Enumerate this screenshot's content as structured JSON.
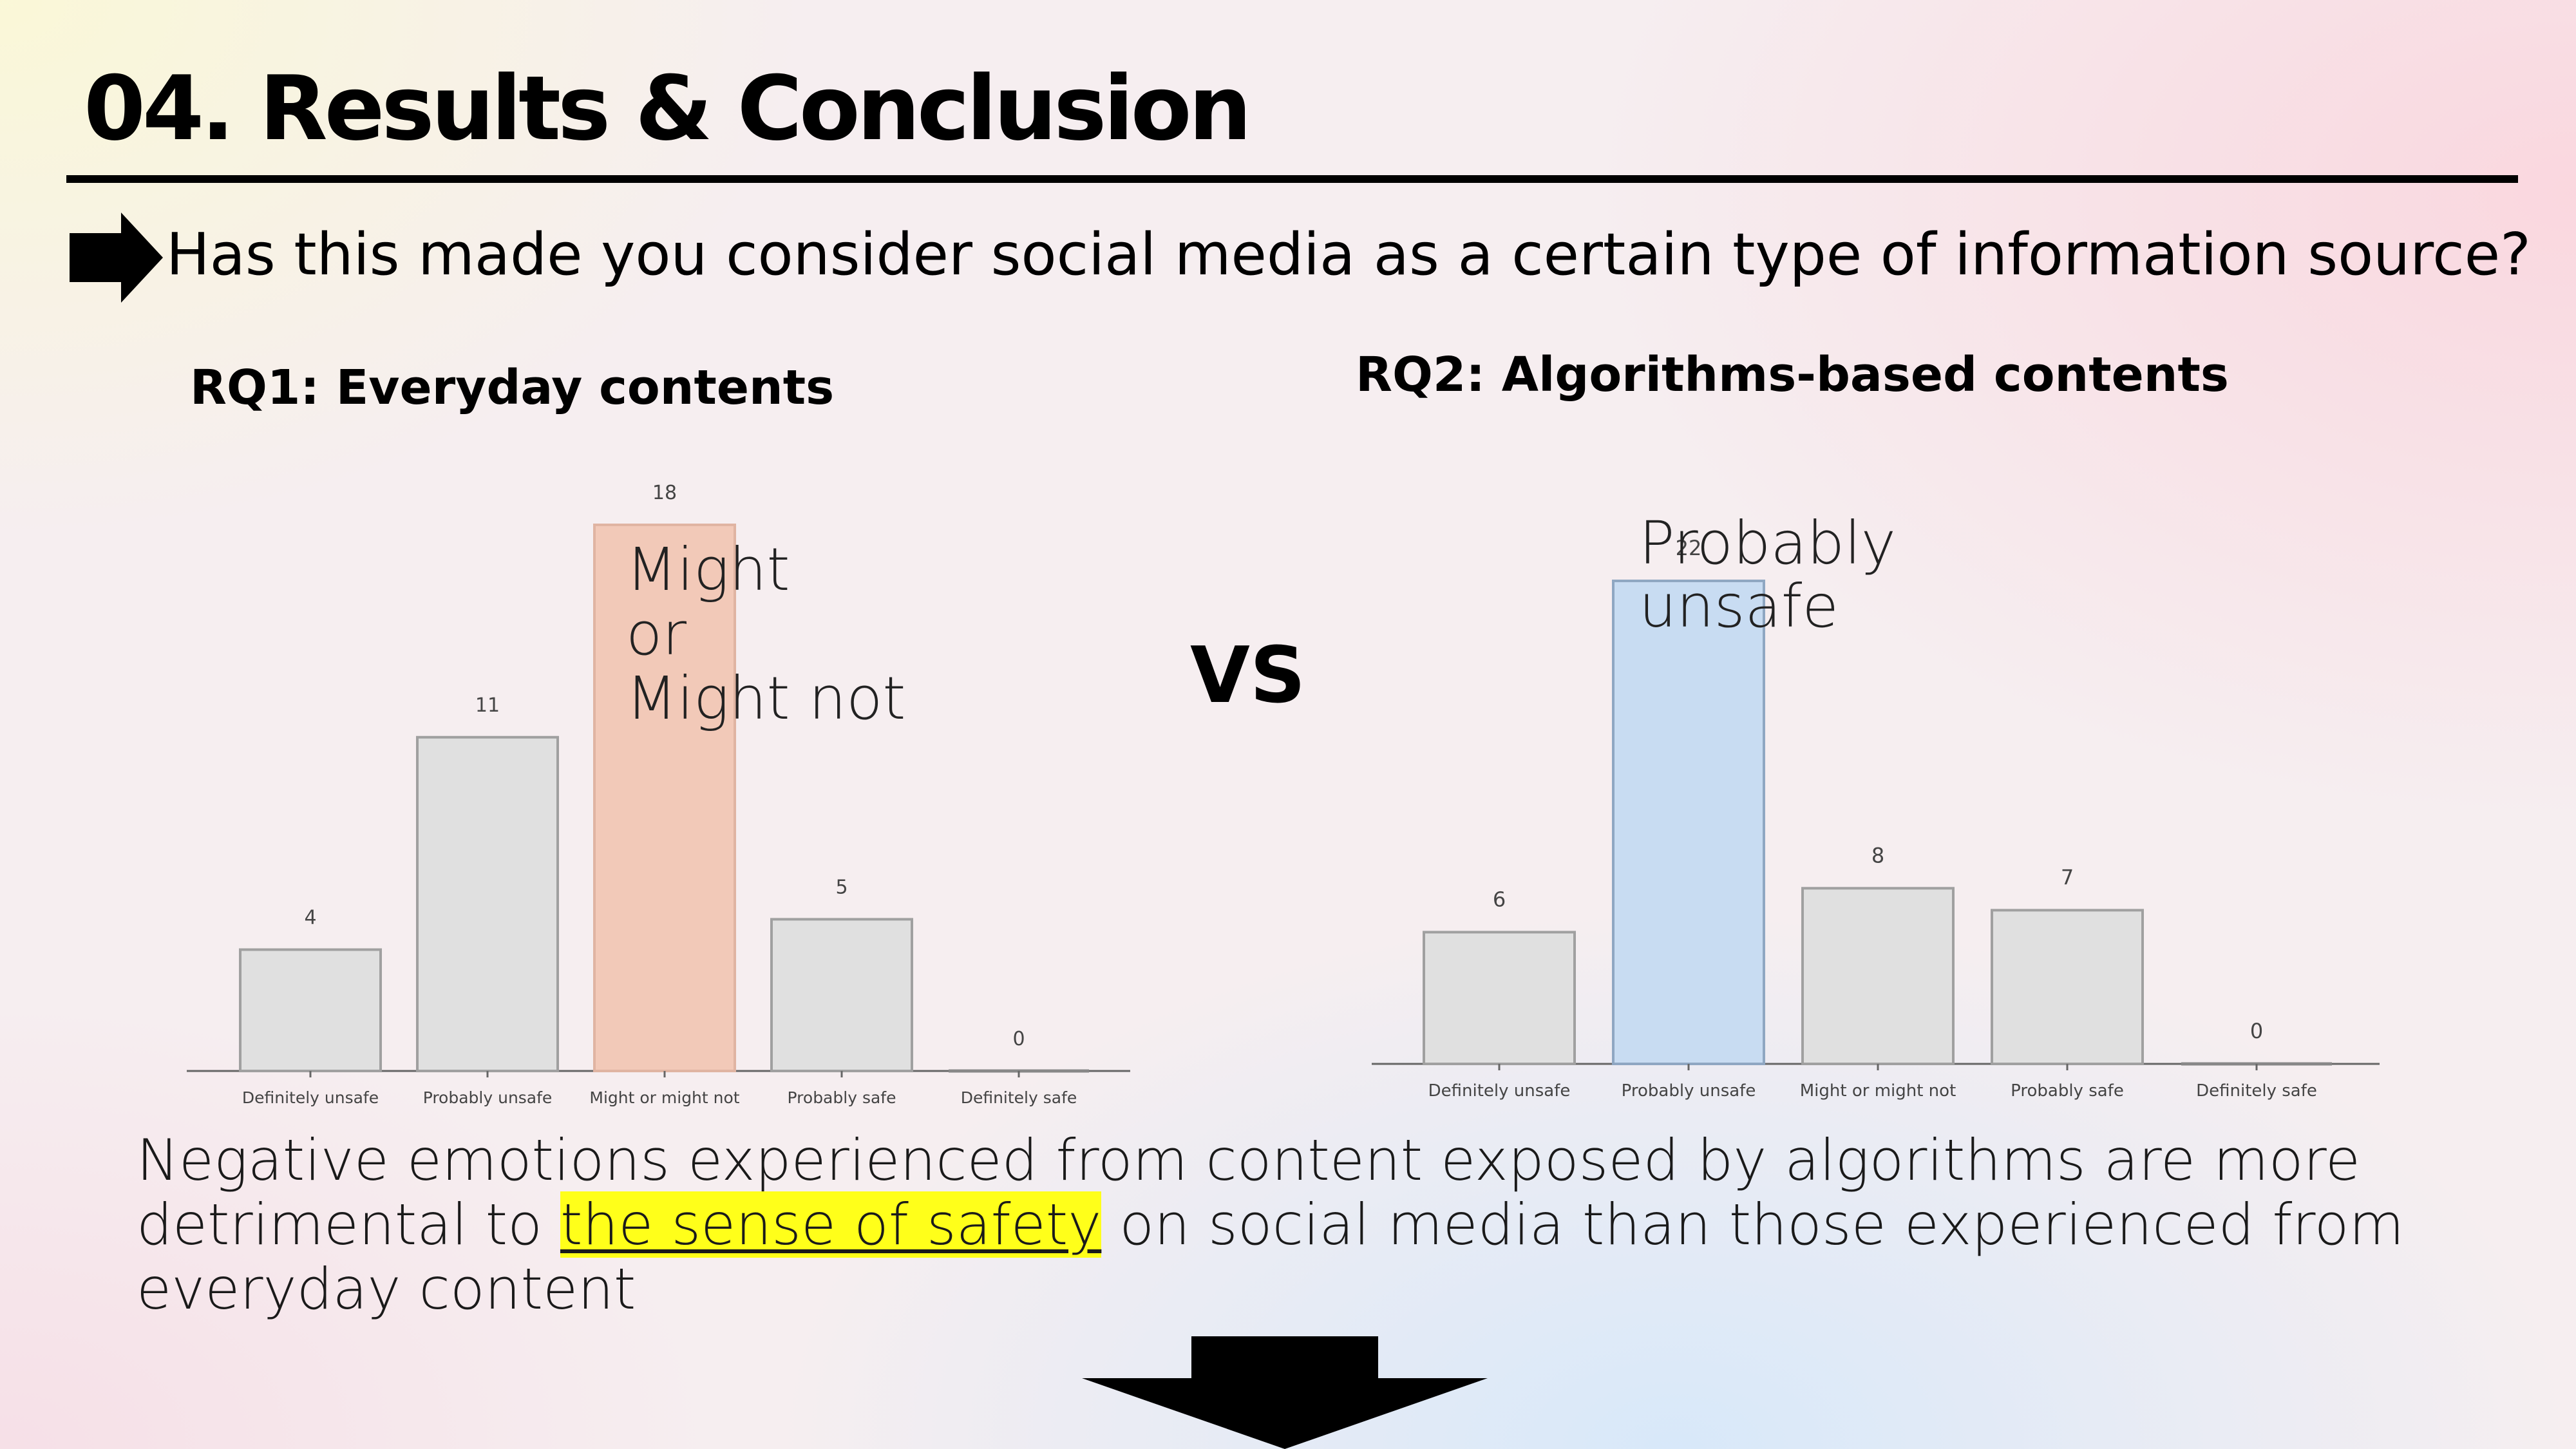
{
  "slide": {
    "title": "04. Results & Conclusion",
    "question": "Has this made you consider social media as a certain type of information source?",
    "vs_label": "VS"
  },
  "conclusion": {
    "before": "Negative emotions experienced from content exposed by algorithms are more detrimental to ",
    "highlight": "the sense of safety",
    "after": " on social media than those experienced from everyday content",
    "highlight_color": "#ffff1a"
  },
  "chart_data": [
    {
      "type": "bar",
      "heading": "RQ1: Everyday contents",
      "categories": [
        "Definitely unsafe",
        "Probably unsafe",
        "Might or might not",
        "Probably safe",
        "Definitely safe"
      ],
      "values": [
        4,
        11,
        18,
        5,
        0
      ],
      "data_labels": [
        "4",
        "11",
        "18",
        "5",
        "0"
      ],
      "highlight_index": 2,
      "bar_color": "#e0e0e0",
      "highlight_color": "#f2c9b8",
      "callout": [
        "Might",
        "or",
        "Might not"
      ]
    },
    {
      "type": "bar",
      "heading": "RQ2: Algorithms-based contents",
      "categories": [
        "Definitely unsafe",
        "Probably unsafe",
        "Might or might not",
        "Probably safe",
        "Definitely safe"
      ],
      "values": [
        6,
        22,
        8,
        7,
        0
      ],
      "data_labels": [
        "6",
        "22",
        "8",
        "7",
        "0"
      ],
      "highlight_index": 1,
      "bar_color": "#e0e0e0",
      "highlight_color": "#c8dcf2",
      "callout": [
        "Probably",
        "unsafe"
      ]
    }
  ]
}
